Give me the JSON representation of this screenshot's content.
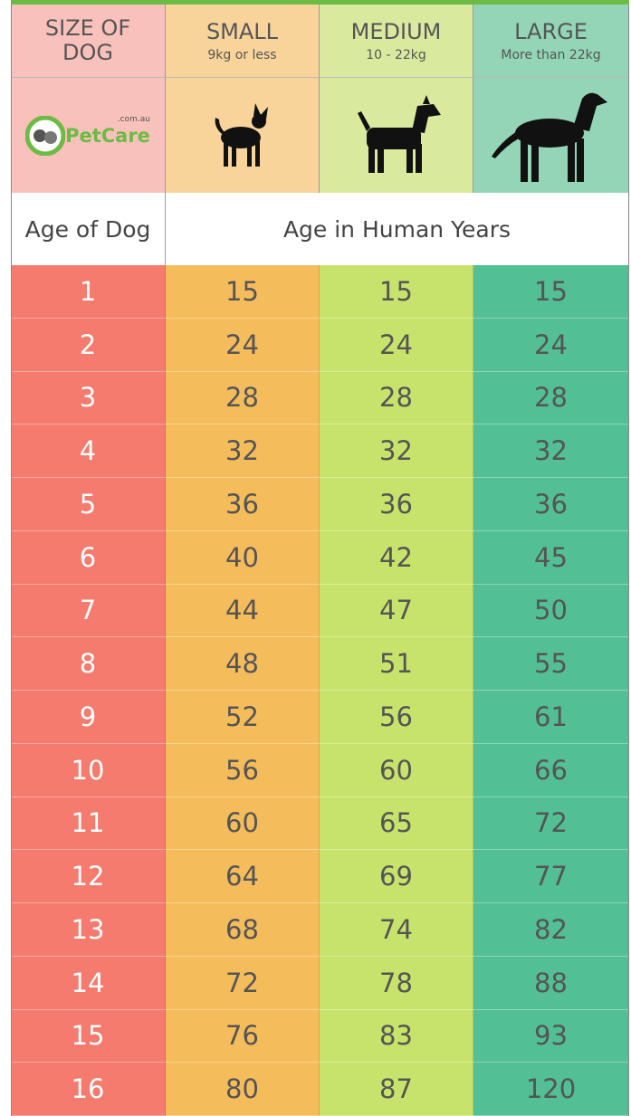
{
  "header": {
    "size_label": "SIZE OF DOG",
    "columns": [
      {
        "name": "SMALL",
        "sub": "9kg or less"
      },
      {
        "name": "MEDIUM",
        "sub": "10 - 22kg"
      },
      {
        "name": "LARGE",
        "sub": "More than 22kg"
      }
    ]
  },
  "logo": {
    "name": "PetCare",
    "domain": ".com.au"
  },
  "subheader": {
    "left": "Age of Dog",
    "right": "Age in Human Years"
  },
  "table": {
    "rows": [
      [
        1,
        15,
        15,
        15
      ],
      [
        2,
        24,
        24,
        24
      ],
      [
        3,
        28,
        28,
        28
      ],
      [
        4,
        32,
        32,
        32
      ],
      [
        5,
        36,
        36,
        36
      ],
      [
        6,
        40,
        42,
        45
      ],
      [
        7,
        44,
        47,
        50
      ],
      [
        8,
        48,
        51,
        55
      ],
      [
        9,
        52,
        56,
        61
      ],
      [
        10,
        56,
        60,
        66
      ],
      [
        11,
        60,
        65,
        72
      ],
      [
        12,
        64,
        69,
        77
      ],
      [
        13,
        68,
        74,
        82
      ],
      [
        14,
        72,
        78,
        88
      ],
      [
        15,
        76,
        83,
        93
      ],
      [
        16,
        80,
        87,
        120
      ]
    ]
  }
}
